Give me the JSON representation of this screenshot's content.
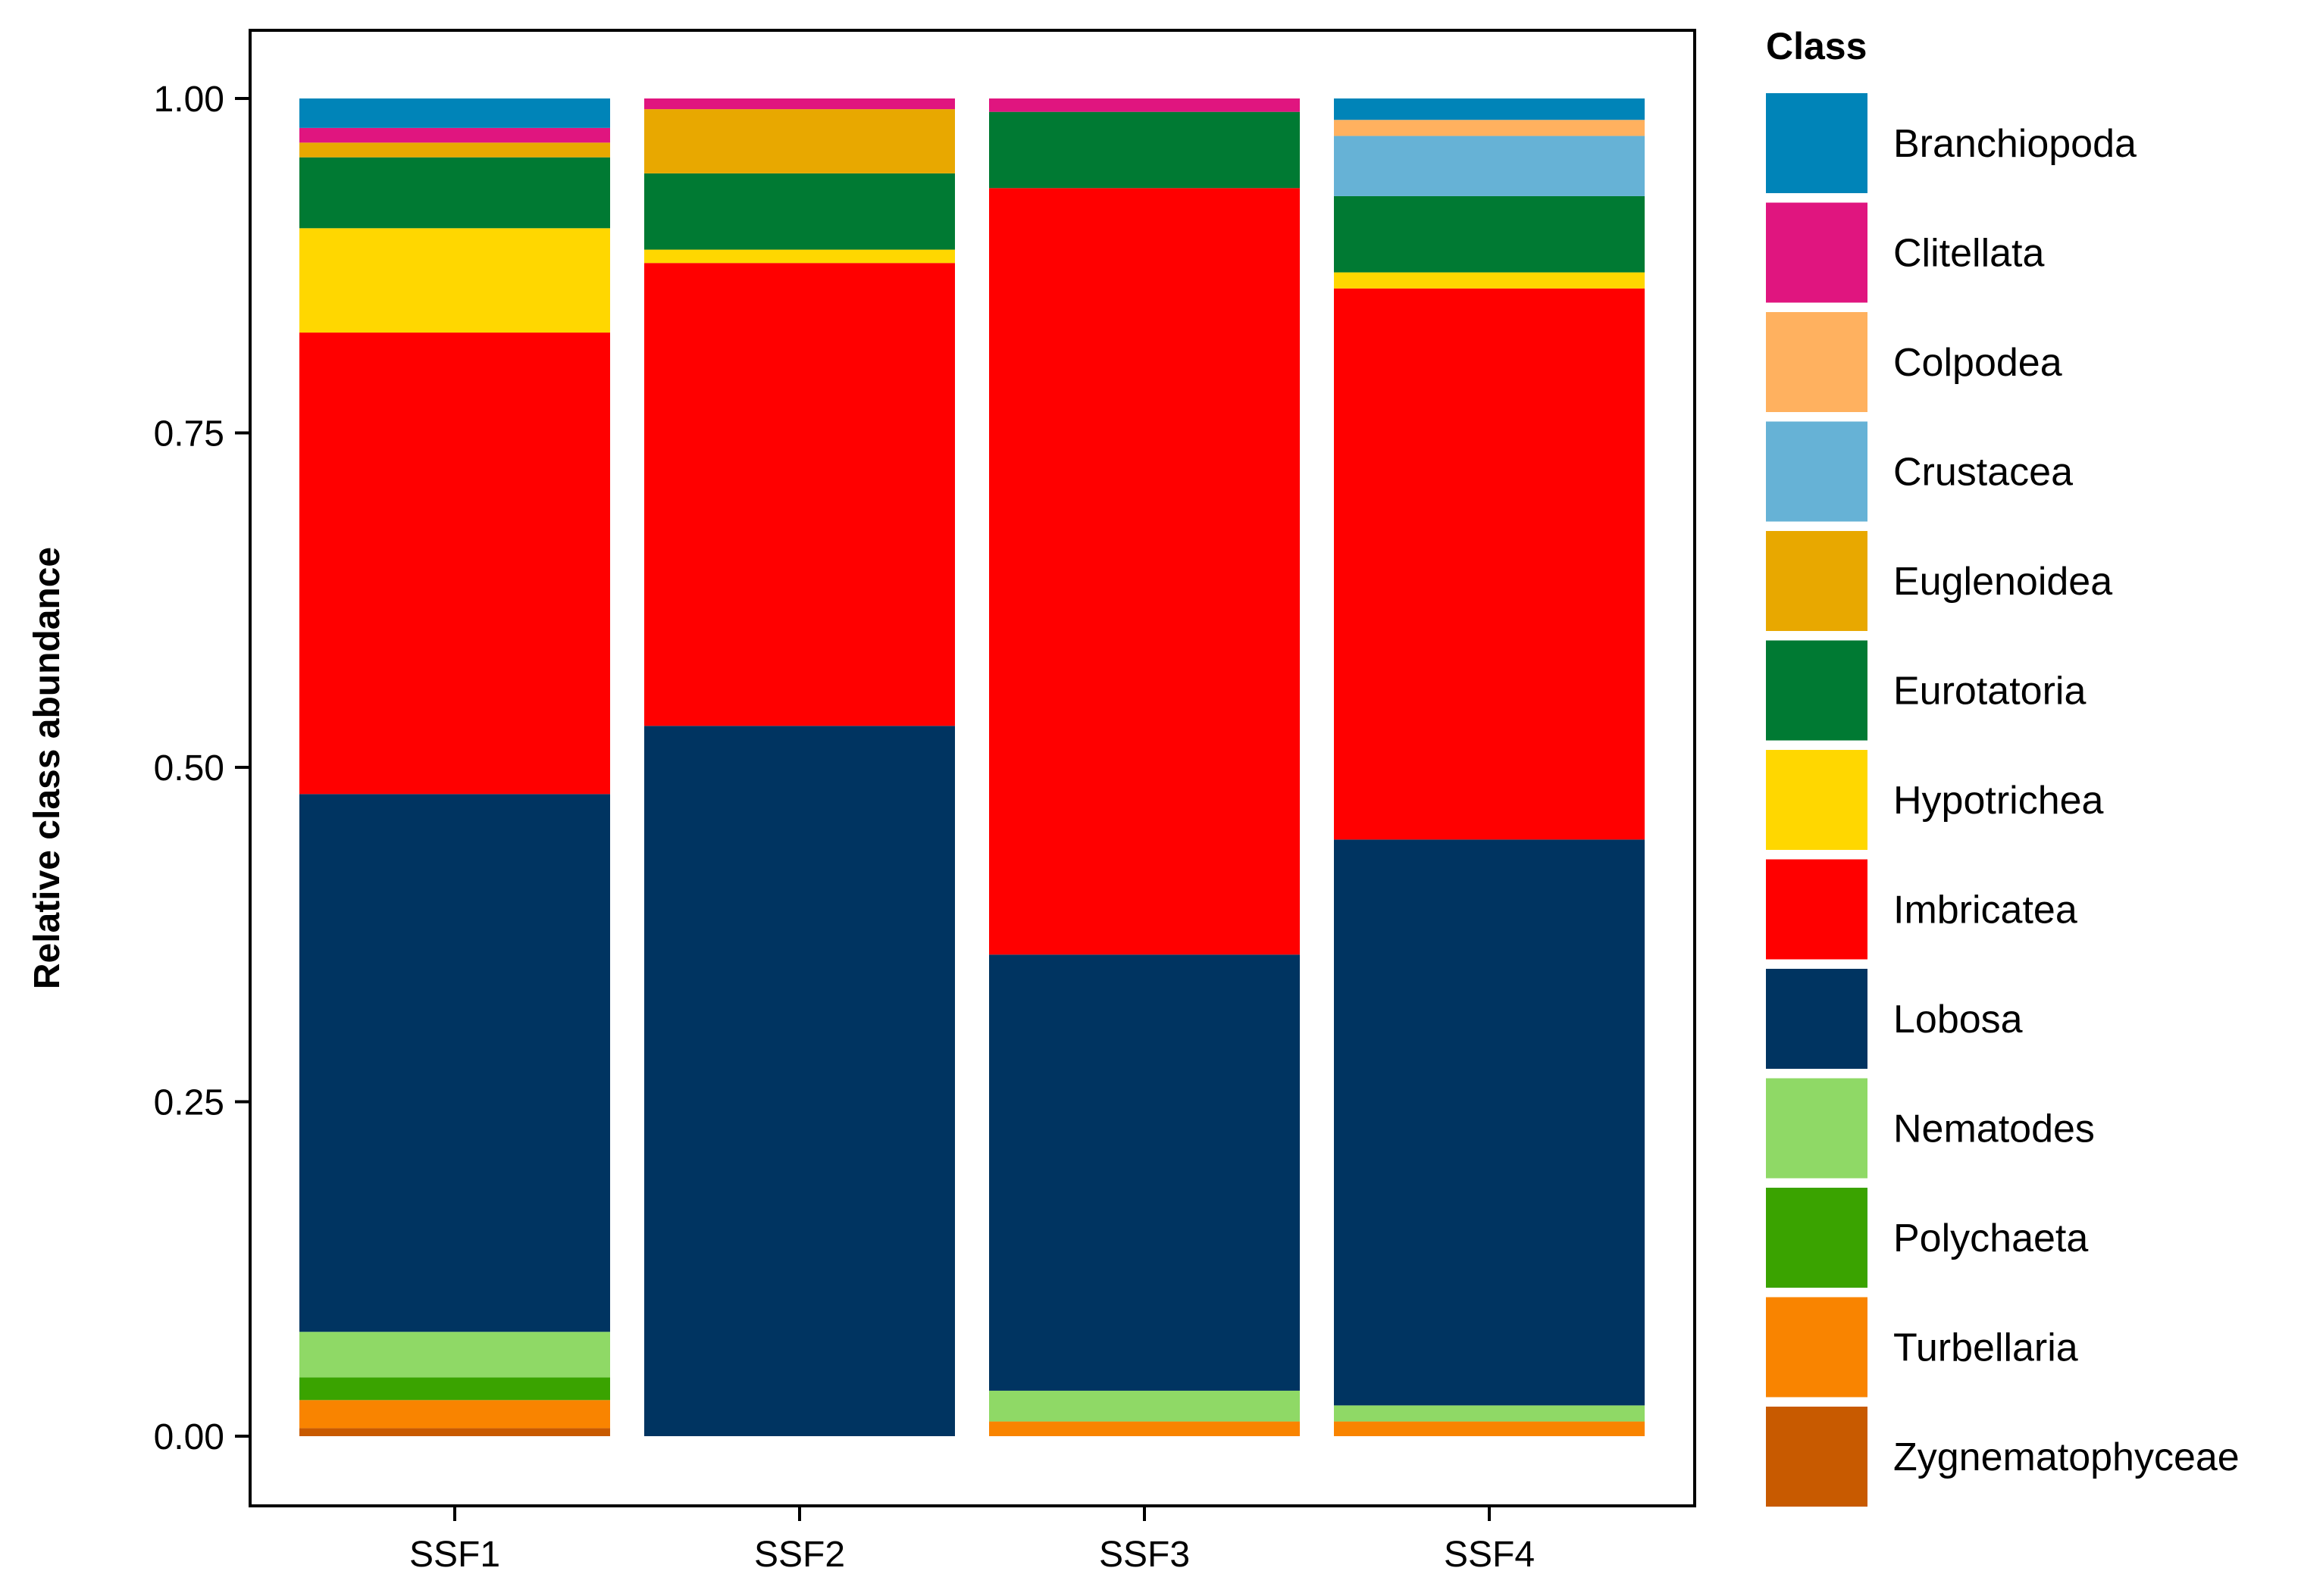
{
  "chart_data": {
    "type": "bar",
    "stacked": true,
    "title": "",
    "xlabel": "",
    "ylabel": "Relative class abundance",
    "ylim": [
      0,
      1.05
    ],
    "y_ticks": [
      0,
      0.25,
      0.5,
      0.75,
      1.0
    ],
    "y_tick_labels": [
      "0.00",
      "0.25",
      "0.50",
      "0.75",
      "1.00"
    ],
    "categories": [
      "SSF1",
      "SSF2",
      "SSF3",
      "SSF4"
    ],
    "legend": {
      "title": "Class",
      "position": "right"
    },
    "series": [
      {
        "name": "Zygnematophyceae",
        "color": "#C85A00",
        "values": [
          0.006,
          0.0,
          0.0,
          0.0
        ]
      },
      {
        "name": "Turbellaria",
        "color": "#F98400",
        "values": [
          0.021,
          0.0,
          0.011,
          0.011
        ]
      },
      {
        "name": "Polychaeta",
        "color": "#3AA300",
        "values": [
          0.017,
          0.0,
          0.0,
          0.0
        ]
      },
      {
        "name": "Nematodes",
        "color": "#8FD966",
        "values": [
          0.034,
          0.0,
          0.023,
          0.012
        ]
      },
      {
        "name": "Lobosa",
        "color": "#003461",
        "values": [
          0.402,
          0.531,
          0.326,
          0.423
        ]
      },
      {
        "name": "Imbricatea",
        "color": "#FF0000",
        "values": [
          0.345,
          0.346,
          0.573,
          0.412
        ]
      },
      {
        "name": "Hypotrichea",
        "color": "#FFD700",
        "values": [
          0.078,
          0.01,
          0.0,
          0.012
        ]
      },
      {
        "name": "Eurotatoria",
        "color": "#007A33",
        "values": [
          0.053,
          0.057,
          0.057,
          0.057
        ]
      },
      {
        "name": "Euglenoidea",
        "color": "#E8A800",
        "values": [
          0.011,
          0.048,
          0.0,
          0.0
        ]
      },
      {
        "name": "Crustacea",
        "color": "#66B2D6",
        "values": [
          0.0,
          0.0,
          0.0,
          0.045
        ]
      },
      {
        "name": "Colpodea",
        "color": "#FFB15F",
        "values": [
          0.0,
          0.0,
          0.0,
          0.012
        ]
      },
      {
        "name": "Clitellata",
        "color": "#E0157F",
        "values": [
          0.011,
          0.008,
          0.01,
          0.0
        ]
      },
      {
        "name": "Branchiopoda",
        "color": "#0084B8",
        "values": [
          0.022,
          0.0,
          0.0,
          0.016
        ]
      }
    ],
    "legend_order": [
      "Branchiopoda",
      "Clitellata",
      "Colpodea",
      "Crustacea",
      "Euglenoidea",
      "Eurotatoria",
      "Hypotrichea",
      "Imbricatea",
      "Lobosa",
      "Nematodes",
      "Polychaeta",
      "Turbellaria",
      "Zygnematophyceae"
    ]
  }
}
